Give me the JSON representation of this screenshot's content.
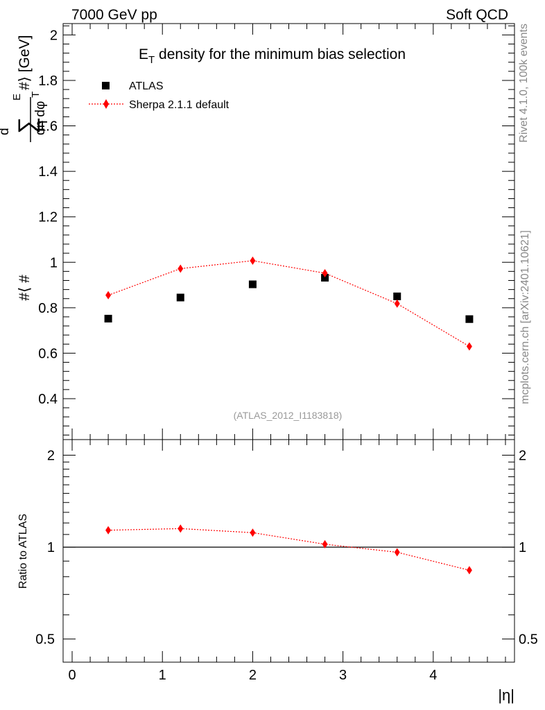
{
  "header": {
    "left": "7000 GeV pp",
    "right": "Soft QCD"
  },
  "side_labels": {
    "rivet": "Rivet 4.1.0,  100k events",
    "mcplots": "mcplots.cern.ch [arXiv:2401.10621]"
  },
  "chart_data": [
    {
      "type": "scatter",
      "title": "E_T density  for the minimum bias selection",
      "title_main": "E",
      "title_sub": "T",
      "title_rest": " density  for the minimum bias selection",
      "xlabel": "|η|",
      "ylabel": "#⟨ #d∑E_T/dη dφ #⟩ [GeV]",
      "ylabel_parts": {
        "bracket_open": "#⟨ #",
        "d": "d",
        "sum": "∑",
        "e": "E",
        "t": "T",
        "bracket_close": "#⟩ [GeV]",
        "denominator": "dη dφ"
      },
      "xlim": [
        -0.1,
        4.9
      ],
      "ylim": [
        0.22,
        2.05
      ],
      "x_ticks": [
        0,
        1,
        2,
        3,
        4
      ],
      "x_tick_labels": [
        "0",
        "1",
        "2",
        "3",
        "4"
      ],
      "y_ticks": [
        0.4,
        0.6,
        0.8,
        1.0,
        1.2,
        1.4,
        1.6,
        1.8,
        2.0
      ],
      "y_tick_labels": [
        "0.4",
        "0.6",
        "0.8",
        "1",
        "1.2",
        "1.4",
        "1.6",
        "1.8",
        "2"
      ],
      "watermark": "(ATLAS_2012_I1183818)",
      "legend_position": "top-left",
      "series": [
        {
          "name": "ATLAS",
          "marker": "square",
          "color": "#000000",
          "x": [
            0.4,
            1.2,
            2.0,
            2.8,
            3.6,
            4.4
          ],
          "values": [
            0.752,
            0.845,
            0.903,
            0.932,
            0.85,
            0.75
          ]
        },
        {
          "name": "Sherpa 2.1.1 default",
          "marker": "diamond",
          "line": "dotted",
          "color": "#ff0000",
          "x": [
            0.4,
            1.2,
            2.0,
            2.8,
            3.6,
            4.4
          ],
          "values": [
            0.855,
            0.972,
            1.007,
            0.952,
            0.818,
            0.63
          ]
        }
      ]
    },
    {
      "type": "line",
      "title": "",
      "xlabel": "|η|",
      "ylabel": "Ratio to ATLAS",
      "xlim": [
        -0.1,
        4.9
      ],
      "ylim": [
        0.42,
        2.25
      ],
      "y_scale": "log",
      "x_ticks": [
        0,
        1,
        2,
        3,
        4
      ],
      "y_ticks": [
        0.5,
        1,
        2
      ],
      "y_tick_labels": [
        "0.5",
        "1",
        "2"
      ],
      "reference_line": 1,
      "series": [
        {
          "name": "Sherpa 2.1.1 default / ATLAS",
          "marker": "diamond",
          "line": "dotted",
          "color": "#ff0000",
          "x": [
            0.4,
            1.2,
            2.0,
            2.8,
            3.6,
            4.4
          ],
          "values": [
            1.136,
            1.15,
            1.115,
            1.022,
            0.962,
            0.84
          ]
        }
      ]
    }
  ]
}
